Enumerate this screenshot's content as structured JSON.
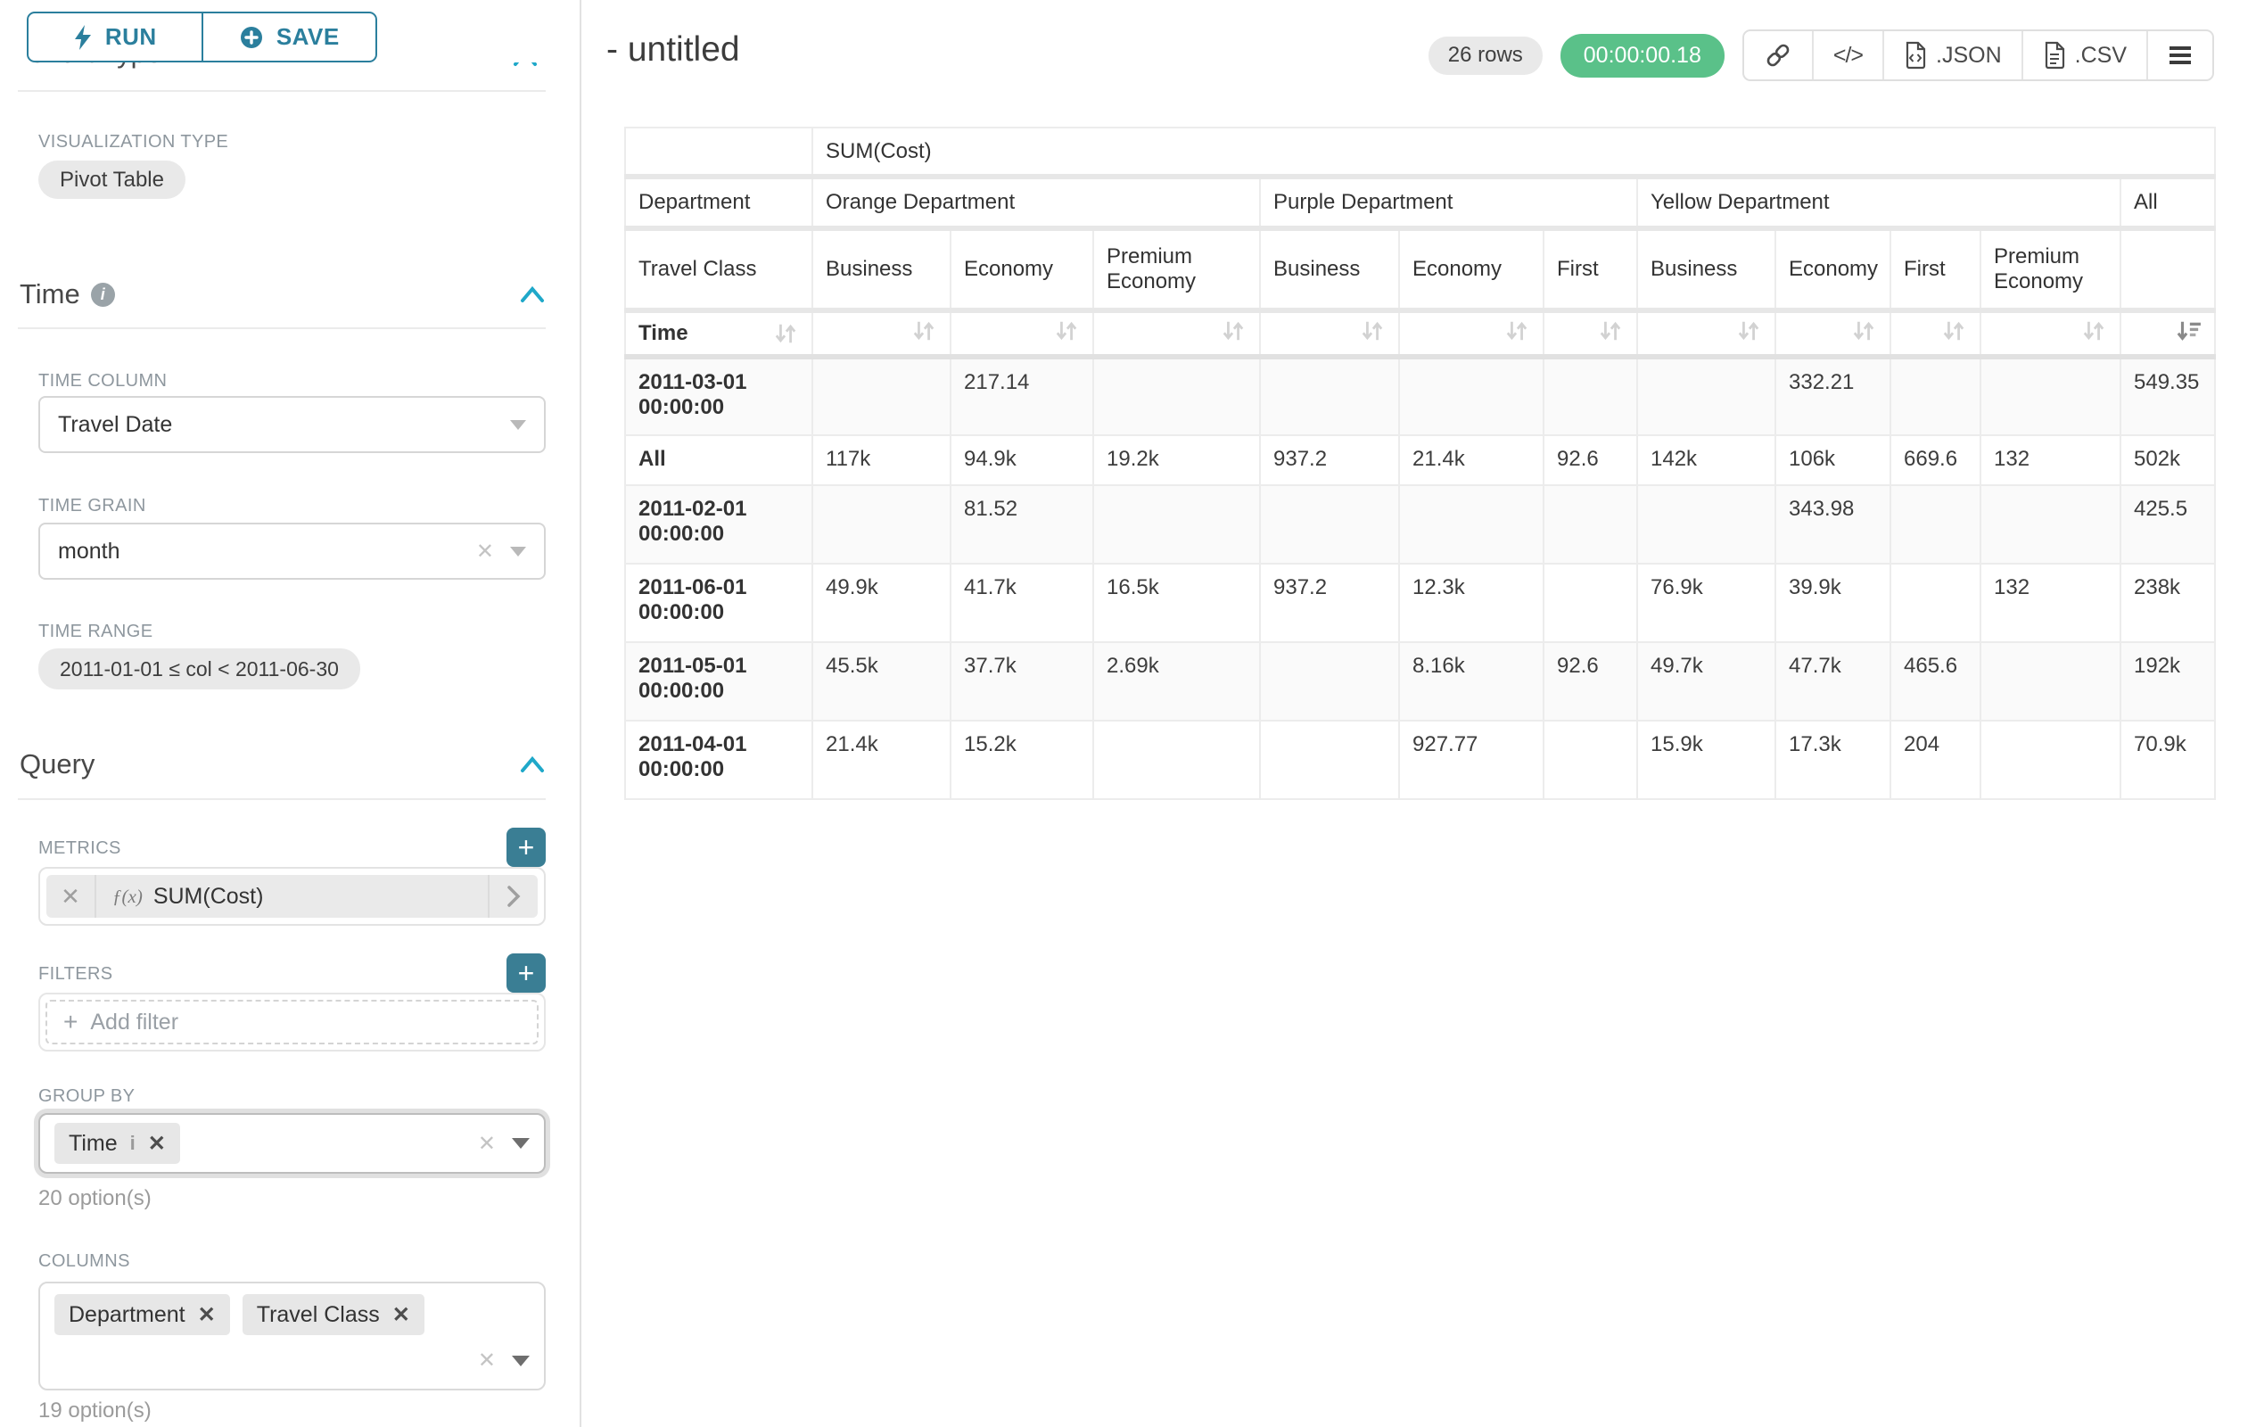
{
  "colors": {
    "accent_teal": "#2b7f9d",
    "plus_button_teal": "#3a7e94",
    "chevron_blue": "#1fa8c9",
    "timer_green": "#5ac189",
    "label_gray": "#8e979e"
  },
  "icons": {
    "run": "lightning-icon",
    "save": "plus-circle-icon",
    "section_info": "info-circle-icon",
    "section_collapse": "chevron-up-icon",
    "select_open": "caret-down-icon",
    "clear": "x-icon",
    "metric_function": "fx-icon",
    "metric_expand": "chevron-right-icon",
    "add": "plus-icon",
    "toolbar": [
      "link-icon",
      "code-icon",
      "json-file-icon",
      "csv-file-icon",
      "menu-icon"
    ],
    "sort_inactive": "sort-updown-icon",
    "sort_active": "sort-descending-icon"
  },
  "sidebar": {
    "run_label": "RUN",
    "save_label": "SAVE",
    "chart_type_heading": "Chart Type",
    "viz_type_label": "VISUALIZATION TYPE",
    "viz_type_value": "Pivot Table",
    "time_section": {
      "title": "Time",
      "time_column_label": "TIME COLUMN",
      "time_column_value": "Travel Date",
      "time_grain_label": "TIME GRAIN",
      "time_grain_value": "month",
      "time_range_label": "TIME RANGE",
      "time_range_value": "2011-01-01 ≤ col < 2011-06-30"
    },
    "query_section": {
      "title": "Query",
      "metrics_label": "METRICS",
      "metric_fx": "ƒ(x)",
      "metric_value": "SUM(Cost)",
      "filters_label": "FILTERS",
      "add_filter_placeholder": "Add filter",
      "group_by_label": "GROUP BY",
      "group_by_tags": [
        "Time"
      ],
      "group_by_options": "20 option(s)",
      "columns_label": "COLUMNS",
      "columns_tags": [
        "Department",
        "Travel Class"
      ],
      "columns_options": "19 option(s)"
    }
  },
  "header": {
    "title": "- untitled",
    "rows_badge": "26 rows",
    "timer": "00:00:00.18",
    "json_label": ".JSON",
    "csv_label": ".CSV"
  },
  "pivot": {
    "metric_header": "SUM(Cost)",
    "department_label": "Department",
    "travel_class_label": "Travel Class",
    "time_label": "Time",
    "col_groups": [
      {
        "label": "Orange Department",
        "cols": [
          "Business",
          "Economy",
          "Premium Economy"
        ]
      },
      {
        "label": "Purple Department",
        "cols": [
          "Business",
          "Economy",
          "First"
        ]
      },
      {
        "label": "Yellow Department",
        "cols": [
          "Business",
          "Economy",
          "First",
          "Premium Economy"
        ]
      },
      {
        "label": "All",
        "cols": [
          ""
        ]
      }
    ],
    "rows": [
      {
        "label": "2011-03-01 00:00:00",
        "values": [
          "",
          "217.14",
          "",
          "",
          "",
          "",
          "",
          "332.21",
          "",
          "",
          "549.35"
        ]
      },
      {
        "label": "All",
        "values": [
          "117k",
          "94.9k",
          "19.2k",
          "937.2",
          "21.4k",
          "92.6",
          "142k",
          "106k",
          "669.6",
          "132",
          "502k"
        ]
      },
      {
        "label": "2011-02-01 00:00:00",
        "values": [
          "",
          "81.52",
          "",
          "",
          "",
          "",
          "",
          "343.98",
          "",
          "",
          "425.5"
        ]
      },
      {
        "label": "2011-06-01 00:00:00",
        "values": [
          "49.9k",
          "41.7k",
          "16.5k",
          "937.2",
          "12.3k",
          "",
          "76.9k",
          "39.9k",
          "",
          "132",
          "238k"
        ]
      },
      {
        "label": "2011-05-01 00:00:00",
        "values": [
          "45.5k",
          "37.7k",
          "2.69k",
          "",
          "8.16k",
          "92.6",
          "49.7k",
          "47.7k",
          "465.6",
          "",
          "192k"
        ]
      },
      {
        "label": "2011-04-01 00:00:00",
        "values": [
          "21.4k",
          "15.2k",
          "",
          "",
          "927.77",
          "",
          "15.9k",
          "17.3k",
          "204",
          "",
          "70.9k"
        ]
      }
    ]
  }
}
